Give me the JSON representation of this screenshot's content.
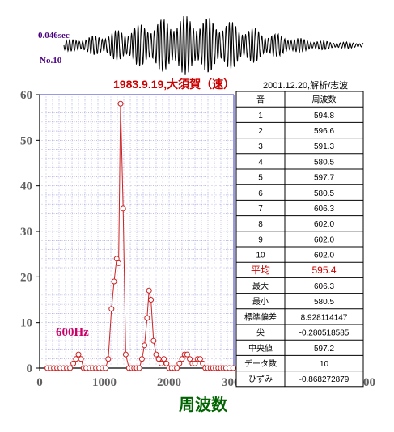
{
  "waveform": {
    "duration_label": "0.046sec",
    "record_label": "No.10"
  },
  "chart_title": {
    "main": "1983.9.19,大須賀（速）",
    "sub": "2001.12.20,解析/志波"
  },
  "annotation": "600Hz",
  "colors": {
    "series": "#cc2222",
    "grid": "#9999dd",
    "axis": "#000000",
    "title": "#cc0000",
    "xlabel": "#006400",
    "annotation": "#cc0066"
  },
  "chart_data": {
    "type": "line",
    "title": "1983.9.19,大須賀（速）",
    "subtitle": "2001.12.20,解析/志波",
    "xlabel": "周波数",
    "ylabel": "",
    "xlim": [
      0,
      5000
    ],
    "ylim": [
      0,
      60
    ],
    "x_ticks": [
      0,
      1000,
      2000,
      3000,
      4000,
      5000
    ],
    "y_ticks": [
      0,
      10,
      20,
      30,
      40,
      50,
      60
    ],
    "grid": true,
    "marker": "open-circle",
    "series": [
      {
        "x": [
          120,
          170,
          220,
          270,
          320,
          370,
          420,
          470,
          520,
          560,
          600,
          640,
          680,
          720,
          770,
          820,
          870,
          920,
          970,
          1020,
          1060,
          1110,
          1150,
          1190,
          1220,
          1250,
          1290,
          1330,
          1380,
          1420,
          1460,
          1500,
          1540,
          1580,
          1620,
          1660,
          1690,
          1720,
          1760,
          1800,
          1840,
          1880,
          1920,
          1960,
          2000,
          2040,
          2080,
          2120,
          2160,
          2200,
          2240,
          2280,
          2320,
          2360,
          2400,
          2440,
          2480,
          2520,
          2560,
          2600,
          2640,
          2680,
          2720,
          2760,
          2800,
          2840,
          2880,
          2930,
          2990
        ],
        "y": [
          0,
          0,
          0,
          0,
          0,
          0,
          0,
          0,
          1,
          2,
          3,
          2,
          0,
          0,
          0,
          0,
          0,
          0,
          0,
          0,
          2,
          13,
          19,
          24,
          23,
          58,
          35,
          3,
          0,
          0,
          0,
          0,
          0,
          2,
          5,
          11,
          17,
          15,
          6,
          3,
          2,
          1,
          2,
          1,
          0,
          0,
          0,
          0,
          1,
          2,
          3,
          3,
          2,
          1,
          1,
          2,
          2,
          1,
          0,
          0,
          0,
          0,
          0,
          0,
          0,
          0,
          0,
          0,
          0
        ]
      }
    ]
  },
  "table": {
    "header": [
      "音",
      "周波数"
    ],
    "rows": [
      [
        "1",
        "594.8"
      ],
      [
        "2",
        "596.6"
      ],
      [
        "3",
        "591.3"
      ],
      [
        "4",
        "580.5"
      ],
      [
        "5",
        "597.7"
      ],
      [
        "6",
        "580.5"
      ],
      [
        "7",
        "606.3"
      ],
      [
        "8",
        "602.0"
      ],
      [
        "9",
        "602.0"
      ],
      [
        "10",
        "602.0"
      ]
    ],
    "average": [
      "平均",
      "595.4"
    ],
    "stats": [
      [
        "最大",
        "606.3"
      ],
      [
        "最小",
        "580.5"
      ],
      [
        "標準偏差",
        "8.928114147"
      ],
      [
        "尖",
        "-0.280518585"
      ],
      [
        "中央値",
        "597.2"
      ],
      [
        "データ数",
        "10"
      ],
      [
        "ひずみ",
        "-0.868272879"
      ]
    ]
  }
}
